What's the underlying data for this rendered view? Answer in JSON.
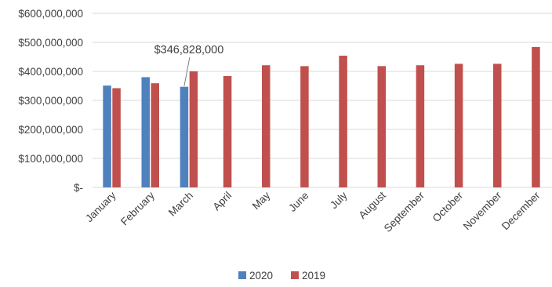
{
  "chart_data": {
    "type": "bar",
    "categories": [
      "January",
      "February",
      "March",
      "April",
      "May",
      "June",
      "July",
      "August",
      "September",
      "October",
      "November",
      "December"
    ],
    "series": [
      {
        "name": "2020",
        "color": "#4f81bd",
        "values": [
          351000000,
          380000000,
          346828000,
          null,
          null,
          null,
          null,
          null,
          null,
          null,
          null,
          null
        ]
      },
      {
        "name": "2019",
        "color": "#c0504d",
        "values": [
          342000000,
          359000000,
          400000000,
          384000000,
          421000000,
          418000000,
          454000000,
          418000000,
          421000000,
          426000000,
          426000000,
          484000000
        ]
      }
    ],
    "yticks": [
      {
        "value": 0,
        "label": "$-"
      },
      {
        "value": 100000000,
        "label": "$100,000,000"
      },
      {
        "value": 200000000,
        "label": "$200,000,000"
      },
      {
        "value": 300000000,
        "label": "$300,000,000"
      },
      {
        "value": 400000000,
        "label": "$400,000,000"
      },
      {
        "value": 500000000,
        "label": "$500,000,000"
      },
      {
        "value": 600000000,
        "label": "$600,000,000"
      }
    ],
    "ylim": [
      0,
      600000000
    ],
    "grid": true,
    "legend_position": "bottom",
    "annotations": [
      {
        "series": "2020",
        "category": "March",
        "text": "$346,828,000"
      }
    ],
    "gridline_color": "#d9d9d9",
    "title": "",
    "xlabel": "",
    "ylabel": ""
  }
}
